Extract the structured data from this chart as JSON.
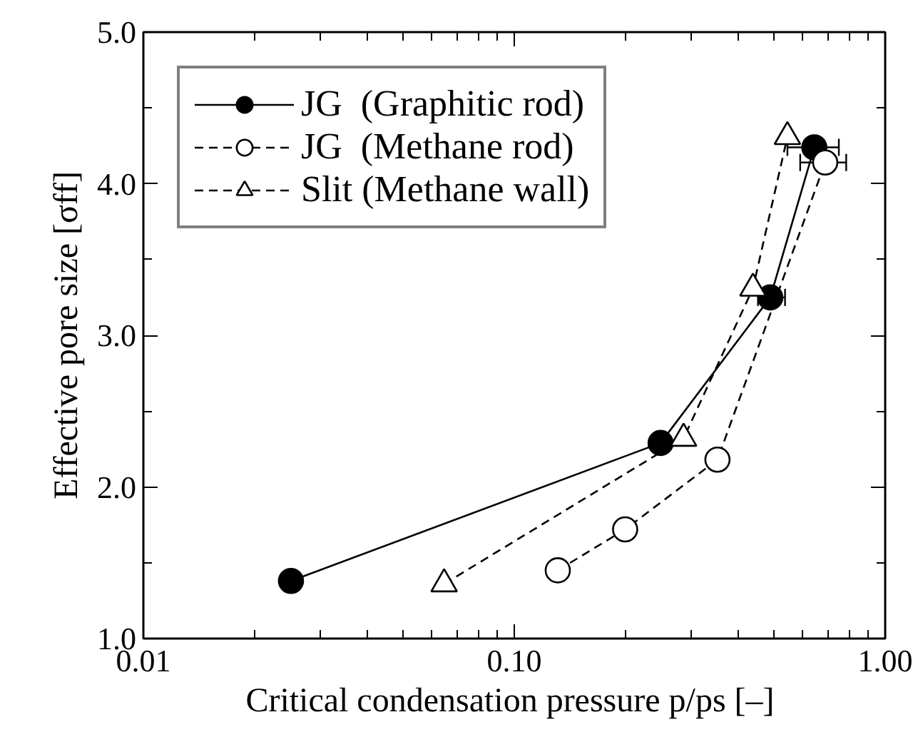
{
  "chart_data": {
    "type": "line",
    "xlabel": "Critical condensation pressure  p/ps [–]",
    "ylabel": "Effective pore size [σff]",
    "log": "x",
    "xlim": [
      0.01,
      1.0
    ],
    "ylim": [
      1.0,
      5.0
    ],
    "xticks": [
      {
        "value": 0.01,
        "label": "0.01"
      },
      {
        "value": 0.02,
        "label": null
      },
      {
        "value": 0.03,
        "label": null
      },
      {
        "value": 0.04,
        "label": null
      },
      {
        "value": 0.05,
        "label": null
      },
      {
        "value": 0.06,
        "label": null
      },
      {
        "value": 0.07,
        "label": null
      },
      {
        "value": 0.08,
        "label": null
      },
      {
        "value": 0.09,
        "label": null
      },
      {
        "value": 0.1,
        "label": "0.10"
      },
      {
        "value": 0.2,
        "label": null
      },
      {
        "value": 0.3,
        "label": null
      },
      {
        "value": 0.4,
        "label": null
      },
      {
        "value": 0.5,
        "label": null
      },
      {
        "value": 0.6,
        "label": null
      },
      {
        "value": 0.7,
        "label": null
      },
      {
        "value": 0.8,
        "label": null
      },
      {
        "value": 0.9,
        "label": null
      },
      {
        "value": 1.0,
        "label": "1.00"
      }
    ],
    "yticks": [
      {
        "value": 1.0,
        "label": "1.0"
      },
      {
        "value": 1.5,
        "label": null
      },
      {
        "value": 2.0,
        "label": "2.0"
      },
      {
        "value": 2.5,
        "label": null
      },
      {
        "value": 3.0,
        "label": "3.0"
      },
      {
        "value": 3.5,
        "label": null
      },
      {
        "value": 4.0,
        "label": "4.0"
      },
      {
        "value": 4.5,
        "label": null
      },
      {
        "value": 5.0,
        "label": "5.0"
      }
    ],
    "grid": false,
    "legend": "top left",
    "series": [
      {
        "name": "JG  (Graphitic rod)",
        "color": "#000000",
        "colors": [
          "#000000",
          "#000000",
          "#000000",
          "#000000"
        ],
        "marker": "circle",
        "line_style": "solid",
        "x": [
          0.025,
          0.248,
          0.49,
          0.644
        ],
        "values": [
          1.38,
          2.29,
          3.25,
          4.24
        ],
        "xerrors": [
          null,
          null,
          [
            0.454,
            0.537
          ],
          [
            0.545,
            0.75
          ]
        ]
      },
      {
        "name": "JG  (Methane rod)",
        "color": "#000000",
        "colors": [
          "#ffffff",
          "#ffffff",
          "#ffffff",
          "#ffffff"
        ],
        "marker": "circle",
        "line_style": "dashed",
        "x": [
          0.131,
          0.199,
          0.353,
          0.689
        ],
        "values": [
          1.45,
          1.72,
          2.18,
          4.14
        ],
        "xerrors": [
          null,
          null,
          null,
          [
            0.59,
            0.785
          ]
        ]
      },
      {
        "name": "Slit (Methane wall)",
        "color": "#000000",
        "colors": [
          "#ffffff",
          "#ffffff",
          "#ffffff",
          "#ffffff"
        ],
        "marker": "triangle",
        "line_style": "dashed",
        "x": [
          0.0647,
          0.286,
          0.44,
          0.545
        ],
        "values": [
          1.36,
          2.32,
          3.31,
          4.31
        ]
      }
    ]
  }
}
